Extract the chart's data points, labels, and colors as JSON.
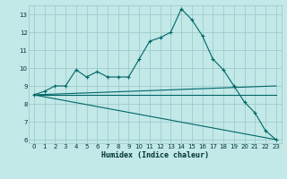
{
  "title": "",
  "xlabel": "Humidex (Indice chaleur)",
  "background_color": "#c2e8e8",
  "grid_color": "#a0cccc",
  "line_color": "#006666",
  "xlim": [
    -0.5,
    23.5
  ],
  "ylim": [
    5.8,
    13.5
  ],
  "xticks": [
    0,
    1,
    2,
    3,
    4,
    5,
    6,
    7,
    8,
    9,
    10,
    11,
    12,
    13,
    14,
    15,
    16,
    17,
    18,
    19,
    20,
    21,
    22,
    23
  ],
  "yticks": [
    6,
    7,
    8,
    9,
    10,
    11,
    12,
    13
  ],
  "line1_x": [
    0,
    1,
    2,
    3,
    4,
    5,
    6,
    7,
    8,
    9,
    10,
    11,
    12,
    13,
    14,
    15,
    16,
    17,
    18,
    19,
    20,
    21,
    22,
    23
  ],
  "line1_y": [
    8.5,
    8.7,
    9.0,
    9.0,
    9.9,
    9.5,
    9.8,
    9.5,
    9.5,
    9.5,
    10.5,
    11.5,
    11.7,
    12.0,
    13.3,
    12.7,
    11.8,
    10.5,
    9.9,
    9.0,
    8.1,
    7.5,
    6.5,
    6.0
  ],
  "line2_x": [
    0,
    23
  ],
  "line2_y": [
    8.5,
    9.0
  ],
  "line3_x": [
    0,
    23
  ],
  "line3_y": [
    8.5,
    8.5
  ],
  "line4_x": [
    0,
    23
  ],
  "line4_y": [
    8.5,
    6.0
  ],
  "tick_fontsize": 5.0,
  "xlabel_fontsize": 6.0
}
